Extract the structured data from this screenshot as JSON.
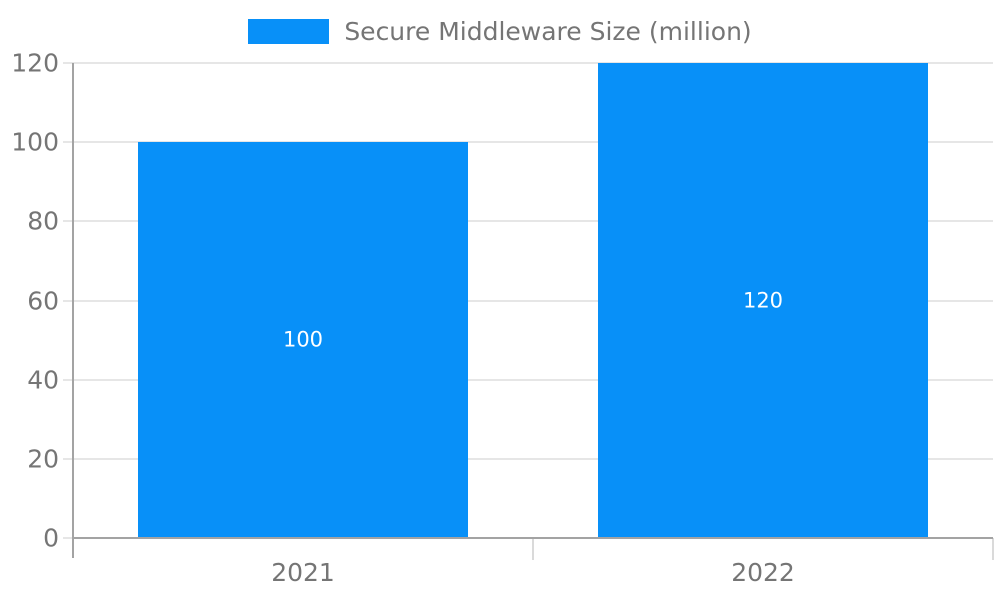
{
  "legend": {
    "label": "Secure Middleware Size (million)"
  },
  "chart_data": {
    "type": "bar",
    "title": "Secure Middleware Size (million)",
    "series_name": "Secure Middleware Size (million)",
    "categories": [
      "2021",
      "2022"
    ],
    "values": [
      100,
      120
    ],
    "data_labels": [
      "100",
      "120"
    ],
    "ytick_labels": [
      "0",
      "20",
      "40",
      "60",
      "80",
      "100",
      "120"
    ],
    "yticks": [
      0,
      20,
      40,
      60,
      80,
      100,
      120
    ],
    "ylim": [
      0,
      120
    ],
    "grid": true,
    "legend_position": "top",
    "colors": {
      "bar": "#0890F8",
      "data_label": "#FFFFFF",
      "grid_line": "#E6E6E6",
      "axis_line": "#A3A3A3",
      "boundary_tick": "#DADADA",
      "text": "#757575"
    }
  }
}
